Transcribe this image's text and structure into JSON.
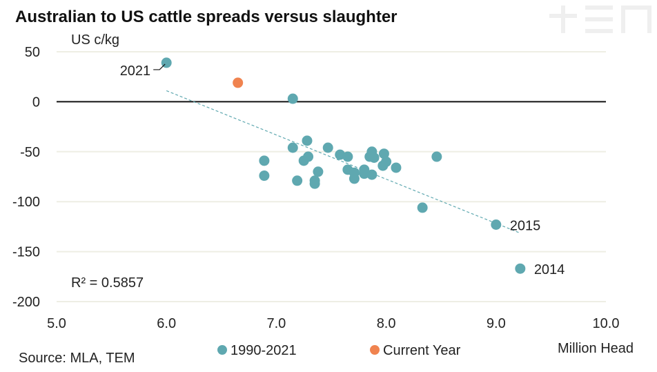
{
  "chart_data": {
    "type": "scatter",
    "title": "Australian to US cattle spreads versus slaughter",
    "ylabel": "US c/kg",
    "xlabel": "Million Head",
    "source": "Source: MLA, TEM",
    "xlim": [
      5.0,
      10.0
    ],
    "ylim": [
      -200,
      50
    ],
    "xticks": [
      "5.0",
      "6.0",
      "7.0",
      "8.0",
      "9.0",
      "10.0"
    ],
    "xtick_values": [
      5,
      6,
      7,
      8,
      9,
      10
    ],
    "yticks": [
      "50",
      "0",
      "-50",
      "-100",
      "-150",
      "-200"
    ],
    "ytick_values": [
      50,
      0,
      -50,
      -100,
      -150,
      -200
    ],
    "grid": "horizontal",
    "zero_line": true,
    "legend": {
      "placement": "bottom",
      "entries": [
        "1990-2021",
        "Current Year"
      ]
    },
    "r_squared_label": "R² = 0.5857",
    "trendline": {
      "x": [
        6.0,
        9.21
      ],
      "y": [
        11,
        -131
      ],
      "style": "dashed"
    },
    "colors": {
      "historic": "#5fa8b0",
      "current": "#f0834f",
      "grid": "#eeeee4",
      "trend": "#5fa8b0"
    },
    "series": [
      {
        "name": "1990-2021",
        "points": [
          {
            "x": 6.0,
            "y": 39,
            "label": "2021"
          },
          {
            "x": 7.15,
            "y": 3
          },
          {
            "x": 6.89,
            "y": -59
          },
          {
            "x": 6.89,
            "y": -74
          },
          {
            "x": 7.15,
            "y": -46
          },
          {
            "x": 7.28,
            "y": -39
          },
          {
            "x": 7.25,
            "y": -59
          },
          {
            "x": 7.29,
            "y": -55
          },
          {
            "x": 7.19,
            "y": -79
          },
          {
            "x": 7.35,
            "y": -79
          },
          {
            "x": 7.35,
            "y": -82
          },
          {
            "x": 7.38,
            "y": -70
          },
          {
            "x": 7.47,
            "y": -46
          },
          {
            "x": 7.58,
            "y": -53
          },
          {
            "x": 7.65,
            "y": -55
          },
          {
            "x": 7.65,
            "y": -68
          },
          {
            "x": 7.71,
            "y": -71
          },
          {
            "x": 7.71,
            "y": -77
          },
          {
            "x": 7.8,
            "y": -72
          },
          {
            "x": 7.8,
            "y": -68
          },
          {
            "x": 7.87,
            "y": -73
          },
          {
            "x": 7.87,
            "y": -50
          },
          {
            "x": 7.85,
            "y": -55
          },
          {
            "x": 7.89,
            "y": -56
          },
          {
            "x": 7.98,
            "y": -52
          },
          {
            "x": 8.0,
            "y": -60
          },
          {
            "x": 7.97,
            "y": -64
          },
          {
            "x": 8.09,
            "y": -66
          },
          {
            "x": 8.46,
            "y": -55
          },
          {
            "x": 8.33,
            "y": -106
          },
          {
            "x": 9.0,
            "y": -123,
            "label": "2015"
          },
          {
            "x": 9.22,
            "y": -167,
            "label": "2014"
          }
        ]
      },
      {
        "name": "Current Year",
        "points": [
          {
            "x": 6.65,
            "y": 19
          }
        ]
      }
    ]
  }
}
